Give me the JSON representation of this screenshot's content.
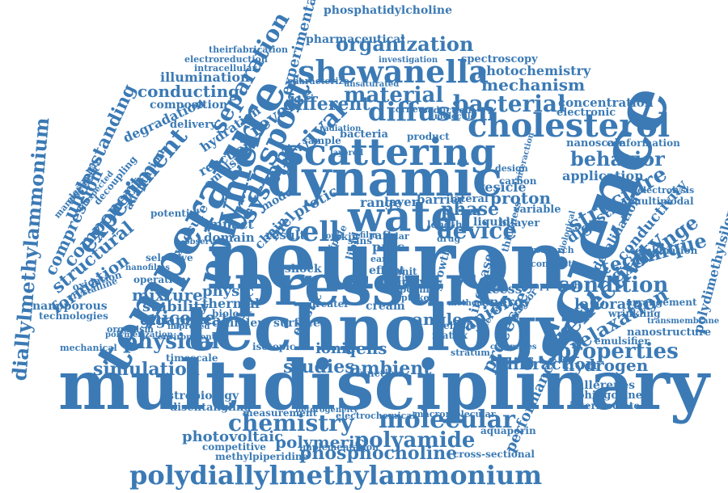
{
  "words": [
    {
      "id": "neutron",
      "text": "neutron"
    },
    {
      "id": "multidisciplinary",
      "text": "multidisciplinary"
    },
    {
      "id": "technology",
      "text": "technology"
    },
    {
      "id": "pressure",
      "text": "pressure"
    },
    {
      "id": "dynamic",
      "text": "dynamic"
    },
    {
      "id": "science",
      "text": "science"
    },
    {
      "id": "water",
      "text": "water"
    },
    {
      "id": "scattering",
      "text": "scattering"
    },
    {
      "id": "temperature",
      "text": "temperature"
    },
    {
      "id": "polymer",
      "text": "polymer"
    },
    {
      "id": "cholesterol",
      "text": "cholesterol"
    },
    {
      "id": "shewanella",
      "text": "shewanella"
    },
    {
      "id": "polydiallylmethylammonium",
      "text": "polydiallylmethylammonium"
    },
    {
      "id": "diallylmethylammonium",
      "text": "diallylmethylammonium"
    },
    {
      "id": "transport",
      "text": "transport"
    },
    {
      "id": "experiment",
      "text": "experiment"
    },
    {
      "id": "chemistry",
      "text": "chemistry"
    },
    {
      "id": "molecular",
      "text": "molecular"
    },
    {
      "id": "polyamide",
      "text": "polyamide"
    },
    {
      "id": "physical",
      "text": "physical"
    },
    {
      "id": "properties",
      "text": "properties"
    },
    {
      "id": "reflectivity",
      "text": "reflectivity"
    },
    {
      "id": "structure",
      "text": "structure"
    },
    {
      "id": "organization",
      "text": "organization"
    },
    {
      "id": "diffusion",
      "text": "diffusion"
    },
    {
      "id": "material",
      "text": "material"
    },
    {
      "id": "bacterial",
      "text": "bacterial"
    },
    {
      "id": "survival",
      "text": "survival"
    },
    {
      "id": "system",
      "text": "system"
    },
    {
      "id": "separation",
      "text": "separation"
    },
    {
      "id": "cell",
      "text": "cell"
    },
    {
      "id": "device",
      "text": "device"
    },
    {
      "id": "phase",
      "text": "phase"
    },
    {
      "id": "condition",
      "text": "condition"
    },
    {
      "id": "technique",
      "text": "technique"
    },
    {
      "id": "relaxation",
      "text": "relaxation"
    },
    {
      "id": "exchange",
      "text": "exchange"
    },
    {
      "id": "mechanism",
      "text": "mechanism"
    },
    {
      "id": "behavior",
      "text": "behavior"
    },
    {
      "id": "understanding",
      "text": "understanding"
    },
    {
      "id": "component",
      "text": "component"
    },
    {
      "id": "structural",
      "text": "structural"
    },
    {
      "id": "compression",
      "text": "compression"
    },
    {
      "id": "formation",
      "text": "formation"
    },
    {
      "id": "simulation",
      "text": "simulation"
    },
    {
      "id": "micelle",
      "text": "micelle"
    },
    {
      "id": "studies",
      "text": "studies"
    },
    {
      "id": "ambient",
      "text": "ambient"
    },
    {
      "id": "phosphocholine",
      "text": "phosphocholine"
    },
    {
      "id": "polymeric",
      "text": "polymeric"
    },
    {
      "id": "photovoltaic",
      "text": "photovoltaic"
    },
    {
      "id": "performance",
      "text": "performance"
    },
    {
      "id": "processes",
      "text": "processes"
    },
    {
      "id": "diffraction",
      "text": "diffraction"
    },
    {
      "id": "hydrogen",
      "text": "hydrogen"
    },
    {
      "id": "laboratory",
      "text": "laboratory"
    },
    {
      "id": "digestion",
      "text": "digestion"
    },
    {
      "id": "conductivity",
      "text": "conductivity"
    },
    {
      "id": "polydimethylsiloxane",
      "text": "polydimethylsiloxane"
    },
    {
      "id": "photochemistry",
      "text": "photochemistry"
    },
    {
      "id": "conducting",
      "text": "conducting"
    },
    {
      "id": "illumination",
      "text": "illumination"
    },
    {
      "id": "different",
      "text": "different"
    },
    {
      "id": "reverse",
      "text": "reverse"
    },
    {
      "id": "experimental",
      "text": "experimental"
    },
    {
      "id": "mixture",
      "text": "mixture"
    },
    {
      "id": "stability",
      "text": "stability"
    },
    {
      "id": "gigapascal",
      "text": "gigapascal"
    },
    {
      "id": "ionic",
      "text": "ionic"
    },
    {
      "id": "qens",
      "text": "qens"
    },
    {
      "id": "angle",
      "text": "angle"
    },
    {
      "id": "anion",
      "text": "anion"
    },
    {
      "id": "proton",
      "text": "proton"
    },
    {
      "id": "application",
      "text": "application"
    },
    {
      "id": "concentration",
      "text": "concentration"
    },
    {
      "id": "electronic",
      "text": "electronic"
    },
    {
      "id": "spectroscopy",
      "text": "spectroscopy"
    },
    {
      "id": "phosphatidylcholine",
      "text": "phosphatidylcholine"
    },
    {
      "id": "pharmaceutical",
      "text": "pharmaceutical"
    },
    {
      "id": "electroreduction",
      "text": "electroreduction"
    },
    {
      "id": "intracellular",
      "text": "intracellular"
    },
    {
      "id": "theirfabrication",
      "text": "theirfabrication"
    },
    {
      "id": "composition",
      "text": "composition"
    },
    {
      "id": "degradation",
      "text": "degradation"
    },
    {
      "id": "delivery",
      "text": "delivery"
    },
    {
      "id": "hydration",
      "text": "hydration"
    },
    {
      "id": "reaction",
      "text": "reaction"
    },
    {
      "id": "emulsion",
      "text": "emulsion"
    },
    {
      "id": "adaptation",
      "text": "adaptation"
    },
    {
      "id": "potential",
      "text": "potential"
    },
    {
      "id": "impact",
      "text": "impact"
    },
    {
      "id": "domain",
      "text": "domain"
    },
    {
      "id": "result",
      "text": "result"
    },
    {
      "id": "range",
      "text": "range"
    },
    {
      "id": "layer",
      "text": "layer"
    },
    {
      "id": "barrier",
      "text": "barrier"
    },
    {
      "id": "lateral",
      "text": "lateral"
    },
    {
      "id": "vesicle",
      "text": "vesicle"
    },
    {
      "id": "liquid",
      "text": "liquid"
    },
    {
      "id": "bilayer",
      "text": "bilayer"
    },
    {
      "id": "variable",
      "text": "variable"
    },
    {
      "id": "excess",
      "text": "excess"
    },
    {
      "id": "energy",
      "text": "energy"
    },
    {
      "id": "increase",
      "text": "increase"
    },
    {
      "id": "physic",
      "text": "physic"
    },
    {
      "id": "thermal",
      "text": "thermal"
    },
    {
      "id": "biology",
      "text": "biology"
    },
    {
      "id": "cylinder",
      "text": "cylinder"
    },
    {
      "id": "surface",
      "text": "surface"
    },
    {
      "id": "elastic",
      "text": "elastic"
    },
    {
      "id": "active",
      "text": "active"
    },
    {
      "id": "growth",
      "text": "growth"
    },
    {
      "id": "shock",
      "text": "shock"
    },
    {
      "id": "model",
      "text": "model"
    },
    {
      "id": "chain",
      "text": "chain"
    },
    {
      "id": "fuel",
      "text": "fuel"
    },
    {
      "id": "protic",
      "text": "protic"
    },
    {
      "id": "exposure",
      "text": "exposure"
    },
    {
      "id": "selective",
      "text": "selective"
    },
    {
      "id": "nanoporous",
      "text": "nanoporous"
    },
    {
      "id": "technologies",
      "text": "technologies"
    },
    {
      "id": "crystalline",
      "text": "crystalline"
    },
    {
      "id": "oxidation",
      "text": "oxidation"
    },
    {
      "id": "operation",
      "text": "operation"
    },
    {
      "id": "mechanical",
      "text": "mechanical"
    },
    {
      "id": "organism",
      "text": "organism"
    },
    {
      "id": "timescale",
      "text": "timescale"
    },
    {
      "id": "astrobiology",
      "text": "astrobiology"
    },
    {
      "id": "disentangling",
      "text": "disentangling"
    },
    {
      "id": "competitive",
      "text": "competitive"
    },
    {
      "id": "methylpiperidine",
      "text": "methylpiperidine"
    },
    {
      "id": "measurement",
      "text": "measurement"
    },
    {
      "id": "aquaporin",
      "text": "aquaporin"
    },
    {
      "id": "cross_sectional",
      "text": "cross-sectional"
    },
    {
      "id": "fullerenes",
      "text": "fullerenes"
    },
    {
      "id": "sphingosine",
      "text": "sphingosine"
    },
    {
      "id": "intermediate",
      "text": "intermediate"
    },
    {
      "id": "nanostructure",
      "text": "nanostructure"
    },
    {
      "id": "emulsifier",
      "text": "emulsifier"
    },
    {
      "id": "arrangement",
      "text": "arrangement"
    },
    {
      "id": "wrinkling",
      "text": "wrinkling"
    },
    {
      "id": "combination",
      "text": "combination"
    },
    {
      "id": "multimodal",
      "text": "multimodal"
    },
    {
      "id": "electrolysis",
      "text": "electrolysis"
    },
    {
      "id": "nanoscale",
      "text": "nanoscale"
    },
    {
      "id": "conformation",
      "text": "conformation"
    },
    {
      "id": "carbon",
      "text": "carbon"
    },
    {
      "id": "desalination",
      "text": "desalination"
    },
    {
      "id": "research",
      "text": "research"
    },
    {
      "id": "contrast",
      "text": "contrast"
    },
    {
      "id": "bacteria",
      "text": "bacteria"
    },
    {
      "id": "sample",
      "text": "sample"
    },
    {
      "id": "product",
      "text": "product"
    },
    {
      "id": "molecule",
      "text": "molecule"
    },
    {
      "id": "reduction",
      "text": "reduction"
    },
    {
      "id": "radiation",
      "text": "radiation"
    },
    {
      "id": "characterize",
      "text": "characterize"
    },
    {
      "id": "unsaturated",
      "text": "unsaturated"
    },
    {
      "id": "investigation",
      "text": "investigation"
    },
    {
      "id": "interaction",
      "text": "interaction"
    },
    {
      "id": "earth",
      "text": "earth"
    },
    {
      "id": "solar",
      "text": "solar"
    },
    {
      "id": "proc",
      "text": "proc"
    },
    {
      "id": "raft",
      "text": "raft"
    },
    {
      "id": "film",
      "text": "film"
    },
    {
      "id": "skin",
      "text": "skin"
    },
    {
      "id": "effect",
      "text": "effect"
    },
    {
      "id": "cream",
      "text": "cream"
    },
    {
      "id": "uptake",
      "text": "uptake"
    },
    {
      "id": "vehicle",
      "text": "vehicle"
    },
    {
      "id": "matrix",
      "text": "matrix"
    },
    {
      "id": "function",
      "text": "function"
    },
    {
      "id": "electrochemical",
      "text": "electrochemical"
    },
    {
      "id": "macromolecular",
      "text": "macromolecular"
    },
    {
      "id": "implementation",
      "text": "implementation"
    },
    {
      "id": "heterogeneity",
      "text": "heterogeneity"
    },
    {
      "id": "greater",
      "text": "greater"
    },
    {
      "id": "isotopic",
      "text": "isotopic"
    },
    {
      "id": "nanofilms",
      "text": "nanofilms"
    },
    {
      "id": "polymerization",
      "text": "polymerization"
    },
    {
      "id": "environment",
      "text": "environment"
    },
    {
      "id": "stratum",
      "text": "stratum"
    },
    {
      "id": "ceramides",
      "text": "ceramides"
    },
    {
      "id": "interface",
      "text": "interface"
    },
    {
      "id": "approach",
      "text": "approach"
    },
    {
      "id": "pcbm",
      "text": "pcbm"
    },
    {
      "id": "unit",
      "text": "unit"
    },
    {
      "id": "time",
      "text": "time"
    },
    {
      "id": "pcbi",
      "text": "pcbi"
    },
    {
      "id": "biological",
      "text": "biological"
    },
    {
      "id": "transmembrane",
      "text": "transmembrane"
    },
    {
      "id": "observed",
      "text": "observed"
    },
    {
      "id": "improved",
      "text": "improved"
    },
    {
      "id": "dipole",
      "text": "dipole"
    },
    {
      "id": "lipid",
      "text": "lipid"
    },
    {
      "id": "thickness",
      "text": "thickness"
    },
    {
      "id": "method",
      "text": "method"
    },
    {
      "id": "corneum",
      "text": "corneum"
    },
    {
      "id": "layered",
      "text": "layered"
    },
    {
      "id": "topic",
      "text": "topic"
    },
    {
      "id": "sans",
      "text": "sans"
    },
    {
      "id": "drug",
      "text": "drug"
    },
    {
      "id": "survivor",
      "text": "survivor"
    },
    {
      "id": "length",
      "text": "length"
    },
    {
      "id": "design",
      "text": "design"
    },
    {
      "id": "management",
      "text": "management"
    },
    {
      "id": "electrolyte",
      "text": "electrolyte"
    },
    {
      "id": "inexpected",
      "text": "inexpected"
    },
    {
      "id": "decoupling",
      "text": "decoupling"
    }
  ]
}
